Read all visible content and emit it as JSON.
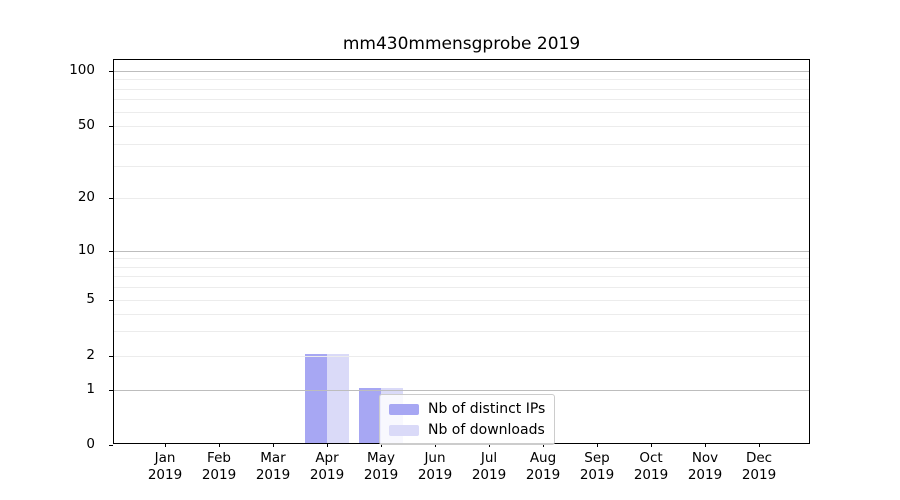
{
  "chart_data": {
    "type": "bar",
    "title": "mm430mmensgprobe 2019",
    "x_tick_year": "2019",
    "categories": [
      "Jan",
      "Feb",
      "Mar",
      "Apr",
      "May",
      "Jun",
      "Jul",
      "Aug",
      "Sep",
      "Oct",
      "Nov",
      "Dec"
    ],
    "series": [
      {
        "name": "Nb of distinct IPs",
        "color": "#a7a7f3",
        "values": [
          0,
          0,
          0,
          2,
          1,
          0,
          0,
          0,
          0,
          0,
          0,
          0
        ]
      },
      {
        "name": "Nb of downloads",
        "color": "#dadaf8",
        "values": [
          0,
          0,
          0,
          2,
          1,
          0,
          0,
          0,
          0,
          0,
          0,
          0
        ]
      }
    ],
    "y_axis": {
      "scale": "log (0 pinned at baseline)",
      "range": [
        0,
        100
      ],
      "tick_values": [
        100,
        50,
        20,
        10,
        5,
        2,
        1,
        0
      ],
      "tick_labels": [
        "100",
        "50",
        "20",
        "10",
        "5",
        "2",
        "1",
        "0"
      ],
      "major_gridlines": [
        1,
        10,
        100
      ],
      "minor_gridlines": [
        2,
        3,
        4,
        5,
        6,
        7,
        8,
        9,
        20,
        30,
        40,
        50,
        60,
        70,
        80,
        90
      ]
    },
    "legend": {
      "position": "lower-center-inside",
      "items": [
        "Nb of distinct IPs",
        "Nb of downloads"
      ]
    },
    "grid": true
  },
  "colors": {
    "background": "#ffffff",
    "axis": "#000000",
    "major_grid": "#bdbdbd",
    "minor_grid": "#ececec",
    "legend_border": "#cccccc",
    "text": "#000000"
  }
}
